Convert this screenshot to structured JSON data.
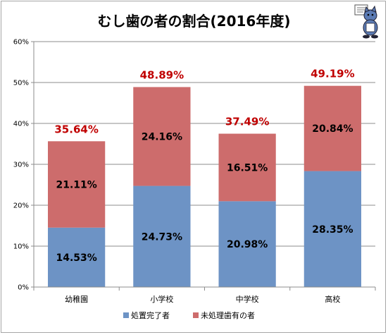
{
  "chart_data": {
    "type": "bar",
    "stacked": true,
    "title": "むし歯の者の割合(2016年度)",
    "categories": [
      "幼稚園",
      "小学校",
      "中学校",
      "高校"
    ],
    "series": [
      {
        "name": "処置完了者",
        "values": [
          14.53,
          24.73,
          20.98,
          28.35
        ],
        "labels": [
          "14.53%",
          "24.73%",
          "20.98%",
          "28.35%"
        ],
        "color": "#6d93c5"
      },
      {
        "name": "未処理歯有の者",
        "values": [
          21.11,
          24.16,
          16.51,
          20.84
        ],
        "labels": [
          "21.11%",
          "24.16%",
          "16.51%",
          "20.84%"
        ],
        "color": "#cd6c6c"
      }
    ],
    "totals": [
      35.64,
      48.89,
      37.49,
      49.19
    ],
    "total_labels": [
      "35.64%",
      "48.89%",
      "37.49%",
      "49.19%"
    ],
    "total_color": "#c00000",
    "ylim": [
      0,
      60
    ],
    "yticks": [
      0,
      10,
      20,
      30,
      40,
      50,
      60
    ],
    "ytick_labels": [
      "0%",
      "10%",
      "20%",
      "30%",
      "40%",
      "50%",
      "60%"
    ],
    "grid": true,
    "legend": "bottom",
    "xlabel": "",
    "ylabel": ""
  },
  "mascot": {
    "icon": "cat-mascot-icon"
  }
}
